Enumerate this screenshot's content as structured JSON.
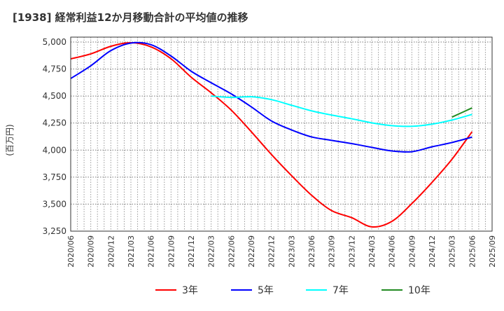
{
  "chart_data": {
    "type": "line",
    "title": "[1938]  経常利益12か月移動合計の平均値の推移",
    "ylabel": "(百万円)",
    "xlabel": "",
    "ylim": [
      3250,
      5045
    ],
    "yticks": [
      3250,
      3500,
      3750,
      4000,
      4250,
      4500,
      4750,
      5000
    ],
    "ytick_labels": [
      "3,250",
      "3,500",
      "3,750",
      "4,000",
      "4,250",
      "4,500",
      "4,750",
      "5,000"
    ],
    "categories": [
      "2020/06",
      "2020/09",
      "2020/12",
      "2021/03",
      "2021/06",
      "2021/09",
      "2021/12",
      "2022/03",
      "2022/06",
      "2022/09",
      "2022/12",
      "2023/03",
      "2023/06",
      "2023/09",
      "2023/12",
      "2024/03",
      "2024/06",
      "2024/09",
      "2024/12",
      "2025/03",
      "2025/06",
      "2025/09"
    ],
    "grid": true,
    "legend_position": "bottom",
    "series": [
      {
        "name": "3年",
        "color": "#ff0000",
        "values": [
          4844,
          4890,
          4960,
          4993,
          4955,
          4845,
          4675,
          4530,
          4370,
          4170,
          3960,
          3765,
          3583,
          3440,
          3375,
          3290,
          3340,
          3505,
          3700,
          3915,
          4170,
          null
        ]
      },
      {
        "name": "5年",
        "color": "#0000ff",
        "values": [
          4662,
          4780,
          4920,
          4990,
          4975,
          4870,
          4730,
          4623,
          4520,
          4400,
          4270,
          4187,
          4122,
          4090,
          4060,
          4025,
          3992,
          3985,
          4030,
          4070,
          4120,
          null
        ]
      },
      {
        "name": "7年",
        "color": "#00ffff",
        "values": [
          null,
          null,
          null,
          null,
          null,
          null,
          null,
          4500,
          4487,
          4493,
          4467,
          4415,
          4363,
          4324,
          4290,
          4252,
          4226,
          4220,
          4240,
          4278,
          4330,
          null
        ]
      },
      {
        "name": "10年",
        "color": "#228b22",
        "values": [
          null,
          null,
          null,
          null,
          null,
          null,
          null,
          null,
          null,
          null,
          null,
          null,
          null,
          null,
          null,
          null,
          null,
          null,
          null,
          4305,
          4390,
          null
        ]
      }
    ]
  }
}
